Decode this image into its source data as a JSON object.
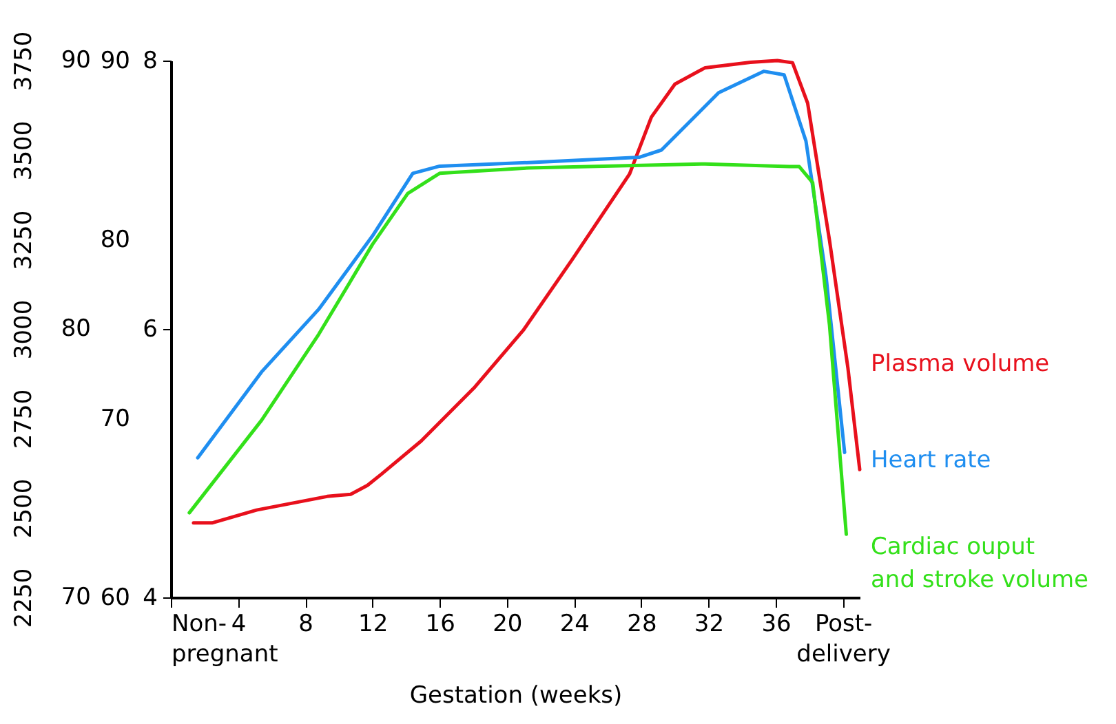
{
  "chart_data": {
    "type": "line",
    "xlabel": "Gestation (weeks)",
    "xlim": [
      0,
      41
    ],
    "xticks": [
      {
        "value": 0,
        "label": "Non-pregnant"
      },
      4,
      8,
      12,
      16,
      20,
      24,
      28,
      32,
      36,
      {
        "value": 40,
        "label": "Post-delivery"
      }
    ],
    "ylim": [
      2250,
      3750
    ],
    "yticks": [
      2250,
      2500,
      2750,
      3000,
      3250,
      3500,
      3750
    ],
    "y2lim": [
      60,
      90
    ],
    "y2ticks": [
      60,
      70,
      80,
      90
    ],
    "y3lim": [
      4,
      8
    ],
    "y3ticks": [
      4,
      6,
      8
    ],
    "annotations": [
      "70",
      "80",
      "90"
    ],
    "grid": false,
    "marker": "none",
    "line_style": "solid",
    "series": [
      {
        "name": "Plasma volume",
        "color": "#e8101c",
        "axis": "y",
        "x": [
          1.35,
          2.45,
          5.1,
          9.3,
          10.7,
          11.7,
          12.5,
          14.9,
          18.1,
          21.0,
          23.9,
          27.3,
          28.6,
          30.0,
          31.8,
          34.5,
          36.1,
          37.0,
          37.9,
          39.2,
          40.3,
          41.0
        ],
        "values": [
          2458,
          2458,
          2494,
          2532,
          2538,
          2563,
          2593,
          2687,
          2838,
          2998,
          3195,
          3433,
          3592,
          3684,
          3730,
          3745,
          3750,
          3744,
          3631,
          3248,
          2890,
          2607
        ]
      },
      {
        "name": "Heart rate",
        "color": "#1f8ef0",
        "axis": "y2",
        "x": [
          1.6,
          5.4,
          8.8,
          12.0,
          14.4,
          16.0,
          21.3,
          27.9,
          29.2,
          32.6,
          35.3,
          36.5,
          37.8,
          39.0,
          40.1
        ],
        "values": [
          67.8,
          72.6,
          76.1,
          80.2,
          83.7,
          84.1,
          84.3,
          84.6,
          85.0,
          88.2,
          89.4,
          89.2,
          85.5,
          77.9,
          68.1
        ]
      },
      {
        "name": "Cardiac ouput and stroke volume",
        "color": "#33e01a",
        "axis": "y3",
        "x": [
          1.1,
          5.4,
          8.8,
          12.0,
          14.1,
          16.0,
          21.3,
          31.8,
          36.8,
          37.4,
          38.2,
          39.2,
          40.2
        ],
        "values": [
          4.63,
          5.32,
          5.96,
          6.63,
          7.01,
          7.16,
          7.2,
          7.23,
          7.21,
          7.21,
          7.09,
          6.03,
          4.47
        ]
      }
    ]
  }
}
